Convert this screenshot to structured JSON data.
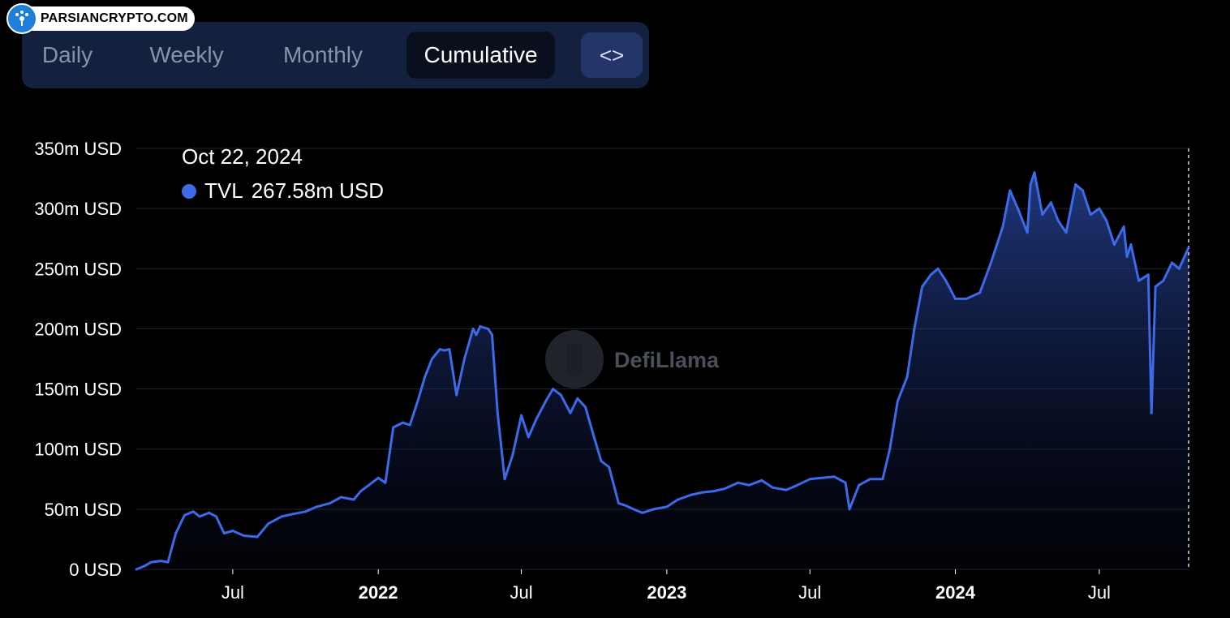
{
  "brand": {
    "text": "PARSIANCRYPTO.COM"
  },
  "tabs": [
    {
      "label": "Daily",
      "active": false
    },
    {
      "label": "Weekly",
      "active": false
    },
    {
      "label": "Monthly",
      "active": false
    },
    {
      "label": "Cumulative",
      "active": true
    }
  ],
  "embed_button": {
    "label": "<>"
  },
  "tooltip": {
    "date": "Oct 22, 2024",
    "series": "TVL",
    "value": "267.58m USD",
    "dot_color": "#3d6ae8"
  },
  "watermark": {
    "text": "DefiLlama"
  },
  "chart_data": {
    "type": "area",
    "title": "",
    "xlabel": "",
    "ylabel": "",
    "ylim": [
      0,
      350
    ],
    "yunit": "m USD",
    "yticks": [
      "0 USD",
      "50m USD",
      "100m USD",
      "150m USD",
      "200m USD",
      "250m USD",
      "300m USD",
      "350m USD"
    ],
    "xticks": [
      {
        "label": "Jul",
        "bold": false
      },
      {
        "label": "2022",
        "bold": true
      },
      {
        "label": "Jul",
        "bold": false
      },
      {
        "label": "2023",
        "bold": true
      },
      {
        "label": "Jul",
        "bold": false
      },
      {
        "label": "2024",
        "bold": true
      },
      {
        "label": "Jul",
        "bold": false
      }
    ],
    "grid": true,
    "line_color": "#3d6ae8",
    "series": [
      {
        "name": "TVL",
        "x": [
          "2021-03-01",
          "2021-03-12",
          "2021-03-20",
          "2021-04-01",
          "2021-04-10",
          "2021-04-20",
          "2021-05-01",
          "2021-05-12",
          "2021-05-20",
          "2021-06-01",
          "2021-06-10",
          "2021-06-20",
          "2021-07-01",
          "2021-07-15",
          "2021-08-01",
          "2021-08-15",
          "2021-09-01",
          "2021-09-15",
          "2021-10-01",
          "2021-10-15",
          "2021-11-01",
          "2021-11-15",
          "2021-12-01",
          "2021-12-10",
          "2021-12-20",
          "2022-01-01",
          "2022-01-10",
          "2022-01-20",
          "2022-02-01",
          "2022-02-10",
          "2022-02-20",
          "2022-03-01",
          "2022-03-10",
          "2022-03-20",
          "2022-03-25",
          "2022-04-01",
          "2022-04-10",
          "2022-04-20",
          "2022-05-01",
          "2022-05-05",
          "2022-05-10",
          "2022-05-20",
          "2022-05-25",
          "2022-06-01",
          "2022-06-10",
          "2022-06-20",
          "2022-07-01",
          "2022-07-10",
          "2022-07-20",
          "2022-08-01",
          "2022-08-10",
          "2022-08-20",
          "2022-09-01",
          "2022-09-10",
          "2022-09-20",
          "2022-10-01",
          "2022-10-10",
          "2022-10-20",
          "2022-11-01",
          "2022-11-10",
          "2022-11-20",
          "2022-12-01",
          "2022-12-15",
          "2023-01-01",
          "2023-01-15",
          "2023-02-01",
          "2023-02-15",
          "2023-03-01",
          "2023-03-15",
          "2023-04-01",
          "2023-04-15",
          "2023-05-01",
          "2023-05-15",
          "2023-06-01",
          "2023-06-15",
          "2023-07-01",
          "2023-07-15",
          "2023-08-01",
          "2023-08-15",
          "2023-08-20",
          "2023-09-01",
          "2023-09-15",
          "2023-10-01",
          "2023-10-10",
          "2023-10-20",
          "2023-11-01",
          "2023-11-10",
          "2023-11-20",
          "2023-12-01",
          "2023-12-10",
          "2023-12-20",
          "2024-01-01",
          "2024-01-15",
          "2024-02-01",
          "2024-02-15",
          "2024-03-01",
          "2024-03-10",
          "2024-03-20",
          "2024-04-01",
          "2024-04-05",
          "2024-04-10",
          "2024-04-20",
          "2024-05-01",
          "2024-05-10",
          "2024-05-20",
          "2024-06-01",
          "2024-06-10",
          "2024-06-20",
          "2024-07-01",
          "2024-07-10",
          "2024-07-20",
          "2024-08-01",
          "2024-08-05",
          "2024-08-10",
          "2024-08-20",
          "2024-09-01",
          "2024-09-05",
          "2024-09-10",
          "2024-09-20",
          "2024-10-01",
          "2024-10-10",
          "2024-10-22"
        ],
        "y": [
          0,
          3,
          6,
          7,
          6,
          30,
          45,
          48,
          44,
          47,
          44,
          30,
          32,
          28,
          27,
          38,
          44,
          46,
          48,
          52,
          55,
          60,
          58,
          65,
          70,
          76,
          72,
          118,
          122,
          120,
          140,
          160,
          175,
          183,
          182,
          183,
          145,
          175,
          200,
          195,
          202,
          200,
          195,
          130,
          75,
          95,
          128,
          110,
          125,
          140,
          150,
          145,
          130,
          142,
          135,
          110,
          90,
          85,
          55,
          53,
          50,
          47,
          50,
          52,
          58,
          62,
          64,
          65,
          67,
          72,
          70,
          74,
          68,
          66,
          70,
          75,
          76,
          77,
          72,
          50,
          70,
          75,
          75,
          100,
          140,
          160,
          200,
          235,
          245,
          250,
          240,
          225,
          225,
          230,
          255,
          285,
          315,
          300,
          280,
          320,
          330,
          295,
          305,
          290,
          280,
          320,
          315,
          295,
          300,
          290,
          270,
          285,
          260,
          270,
          240,
          245,
          130,
          235,
          240,
          255,
          250,
          267.58
        ]
      }
    ],
    "annotations": [
      "Oct 22, 2024",
      "TVL 267.58m USD"
    ]
  }
}
